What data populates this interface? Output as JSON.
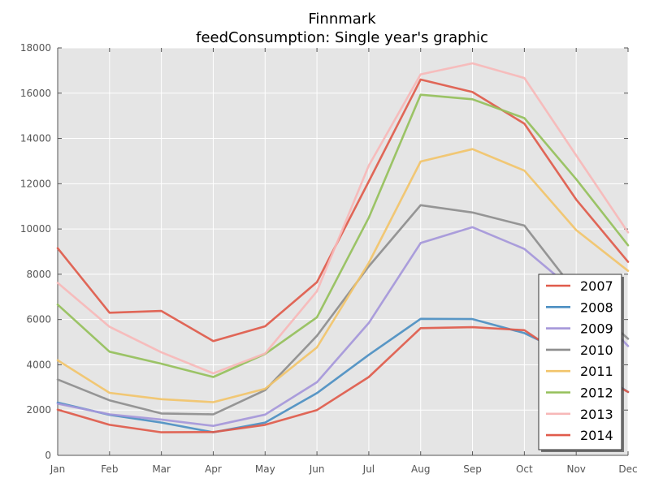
{
  "chart_data": {
    "type": "line",
    "title": "Finnmark",
    "subtitle": "feedConsumption: Single year's graphic",
    "xlabel": "",
    "ylabel": "",
    "categories": [
      "Jan",
      "Feb",
      "Mar",
      "Apr",
      "May",
      "Jun",
      "Jul",
      "Aug",
      "Sep",
      "Oct",
      "Nov",
      "Dec"
    ],
    "ylim": [
      0,
      18000
    ],
    "yticks": [
      0,
      2000,
      4000,
      6000,
      8000,
      10000,
      12000,
      14000,
      16000,
      18000
    ],
    "grid": true,
    "legend_position": "lower-right",
    "background": "#e5e5e5",
    "series": [
      {
        "name": "2007",
        "color": "#e05b4b",
        "values": [
          9150,
          6300,
          6380,
          5050,
          5700,
          7650,
          12100,
          16600,
          16050,
          14650,
          11300,
          8550
        ]
      },
      {
        "name": "2008",
        "color": "#4c8fc2",
        "values": [
          2330,
          1790,
          1450,
          1020,
          1450,
          2750,
          4440,
          6030,
          6020,
          5400,
          4300,
          2800
        ]
      },
      {
        "name": "2009",
        "color": "#a597da",
        "values": [
          2280,
          1810,
          1580,
          1300,
          1800,
          3230,
          5850,
          9380,
          10080,
          9120,
          7200,
          4830
        ]
      },
      {
        "name": "2010",
        "color": "#8e8e8e",
        "values": [
          3350,
          2430,
          1850,
          1810,
          2880,
          5280,
          8350,
          11050,
          10730,
          10150,
          7200,
          5150
        ]
      },
      {
        "name": "2011",
        "color": "#f2c46a",
        "values": [
          4200,
          2760,
          2480,
          2350,
          2940,
          4770,
          8500,
          12980,
          13530,
          12580,
          9950,
          8150
        ]
      },
      {
        "name": "2012",
        "color": "#95c05b",
        "values": [
          6660,
          4580,
          4050,
          3460,
          4480,
          6100,
          10500,
          15930,
          15730,
          14900,
          12200,
          9280
        ]
      },
      {
        "name": "2013",
        "color": "#f7b8b8",
        "values": [
          7620,
          5680,
          4550,
          3620,
          4500,
          7250,
          12800,
          16830,
          17320,
          16670,
          13250,
          9850
        ]
      },
      {
        "name": "2014",
        "color": "#e05b4b",
        "values": [
          2020,
          1350,
          1020,
          1030,
          1350,
          2000,
          3460,
          5620,
          5660,
          5530,
          4000,
          2800
        ]
      }
    ]
  }
}
